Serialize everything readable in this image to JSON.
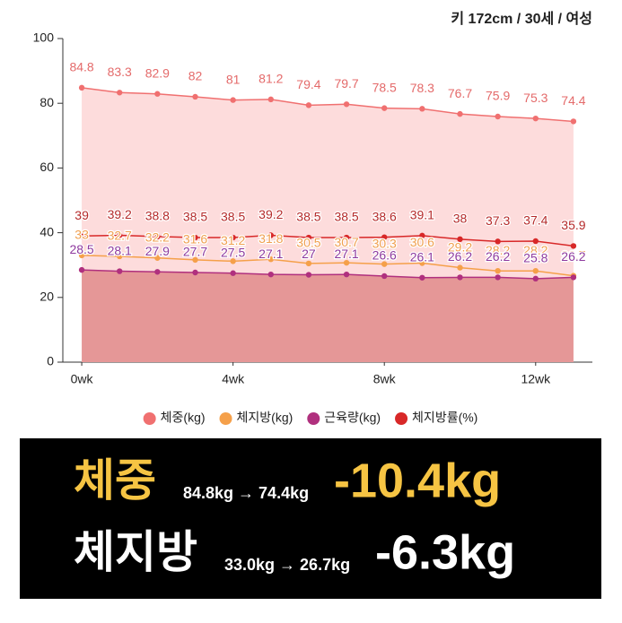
{
  "header": "키 172cm / 30세 / 여성",
  "chart_data": {
    "type": "line",
    "x": [
      0,
      1,
      2,
      3,
      4,
      5,
      6,
      7,
      8,
      9,
      10,
      11,
      12,
      13
    ],
    "xlim": [
      -0.5,
      13.5
    ],
    "xticks": [
      {
        "value": 0,
        "label": "0wk"
      },
      {
        "value": 4,
        "label": "4wk"
      },
      {
        "value": 8,
        "label": "8wk"
      },
      {
        "value": 12,
        "label": "12wk"
      }
    ],
    "ylim": [
      0,
      100
    ],
    "yticks": [
      0,
      20,
      40,
      60,
      80,
      100
    ],
    "series": [
      {
        "name": "체중(kg)",
        "color": "#f07070",
        "label_color": "#e46a6a",
        "area": "#fddcdc",
        "values": [
          84.8,
          83.3,
          82.9,
          82,
          81,
          81.2,
          79.4,
          79.7,
          78.5,
          78.3,
          76.7,
          75.9,
          75.3,
          74.4
        ]
      },
      {
        "name": "체지방(kg)",
        "color": "#f5a04a",
        "label_color": "#f0a050",
        "values": [
          33,
          32.7,
          32.2,
          31.6,
          31.2,
          31.8,
          30.5,
          30.7,
          30.3,
          30.6,
          29.2,
          28.2,
          28.2,
          26.7
        ]
      },
      {
        "name": "근육량(kg)",
        "color": "#b0307e",
        "label_color": "#8e3a9e",
        "area": "#e59797",
        "values": [
          28.5,
          28.1,
          27.9,
          27.7,
          27.5,
          27.1,
          27,
          27.1,
          26.6,
          26.1,
          26.2,
          26.2,
          25.8,
          26.2
        ]
      },
      {
        "name": "체지방률(%)",
        "color": "#d82828",
        "label_color": "#b52a2a",
        "values": [
          39,
          39.2,
          38.8,
          38.5,
          38.5,
          39.2,
          38.5,
          38.5,
          38.6,
          39.1,
          38,
          37.3,
          37.4,
          35.9
        ]
      }
    ]
  },
  "summary": [
    {
      "label": "체중",
      "range": "84.8kg → 74.4kg",
      "change": "-10.4kg"
    },
    {
      "label": "체지방",
      "range": "33.0kg → 26.7kg",
      "change": "-6.3kg"
    }
  ]
}
